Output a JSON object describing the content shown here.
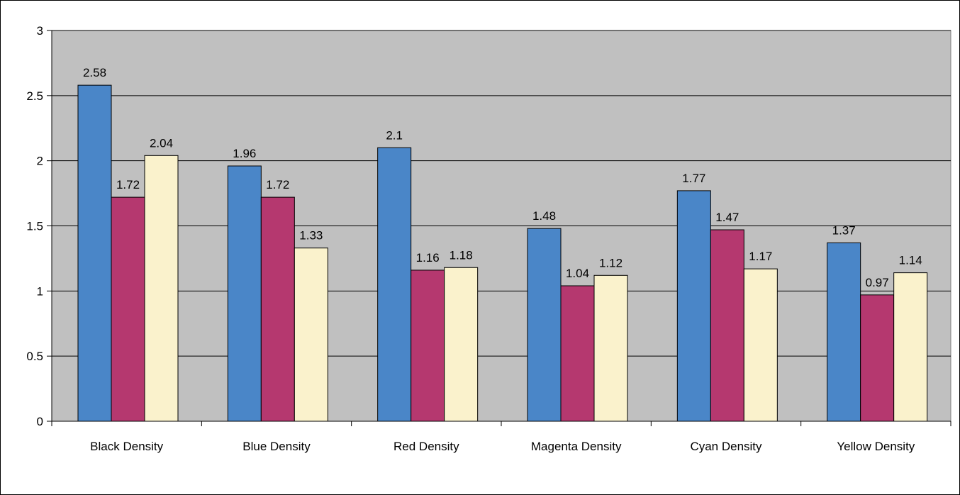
{
  "chart_data": {
    "type": "bar",
    "categories": [
      "Black Density",
      "Blue Density",
      "Red Density",
      "Magenta Density",
      "Cyan Density",
      "Yellow Density"
    ],
    "series": [
      {
        "values": [
          2.58,
          1.96,
          2.1,
          1.48,
          1.77,
          1.37
        ],
        "color": "#4a86c8"
      },
      {
        "values": [
          1.72,
          1.72,
          1.16,
          1.04,
          1.47,
          0.97
        ],
        "color": "#b5386f"
      },
      {
        "values": [
          2.04,
          1.33,
          1.18,
          1.12,
          1.17,
          1.14
        ],
        "color": "#faf2cc"
      }
    ],
    "data_labels": [
      [
        "2.58",
        "1.96",
        "2.1",
        "1.48",
        "1.77",
        "1.37"
      ],
      [
        "1.72",
        "1.72",
        "1.16",
        "1.04",
        "1.47",
        "0.97"
      ],
      [
        "2.04",
        "1.33",
        "1.18",
        "1.12",
        "1.17",
        "1.14"
      ]
    ],
    "ylim": [
      0,
      3
    ],
    "yticks": [
      0,
      0.5,
      1,
      1.5,
      2,
      2.5,
      3
    ],
    "ytick_labels": [
      "0",
      "0.5",
      "1",
      "1.5",
      "2",
      "2.5",
      "3"
    ],
    "grid": true,
    "plot_background": "#c0c0c0",
    "title": "",
    "xlabel": "",
    "ylabel": ""
  }
}
